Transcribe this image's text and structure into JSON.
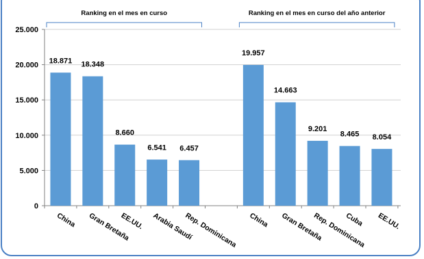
{
  "chart_data": {
    "type": "bar",
    "ylim": [
      0,
      25000
    ],
    "y_ticks": [
      "0",
      "5.000",
      "10.000",
      "15.000",
      "20.000",
      "25.000"
    ],
    "grid": true,
    "bar_color": "#5b9bd5",
    "groups": [
      {
        "label": "Ranking en el mes en curso",
        "categories": [
          "China",
          "Gran Bretaña",
          "EE.UU.",
          "Arabia Saudí",
          "Rep. Dominicana"
        ],
        "values": [
          18871,
          18348,
          8660,
          6541,
          6457
        ],
        "value_labels": [
          "18.871",
          "18.348",
          "8.660",
          "6.541",
          "6.457"
        ]
      },
      {
        "label": "Ranking en el mes en curso del año anterior",
        "categories": [
          "China",
          "Gran Bretaña",
          "Rep. Dominicana",
          "Cuba",
          "EE.UU."
        ],
        "values": [
          19957,
          14663,
          9201,
          8465,
          8054
        ],
        "value_labels": [
          "19.957",
          "14.663",
          "9.201",
          "8.465",
          "8.054"
        ]
      }
    ]
  }
}
